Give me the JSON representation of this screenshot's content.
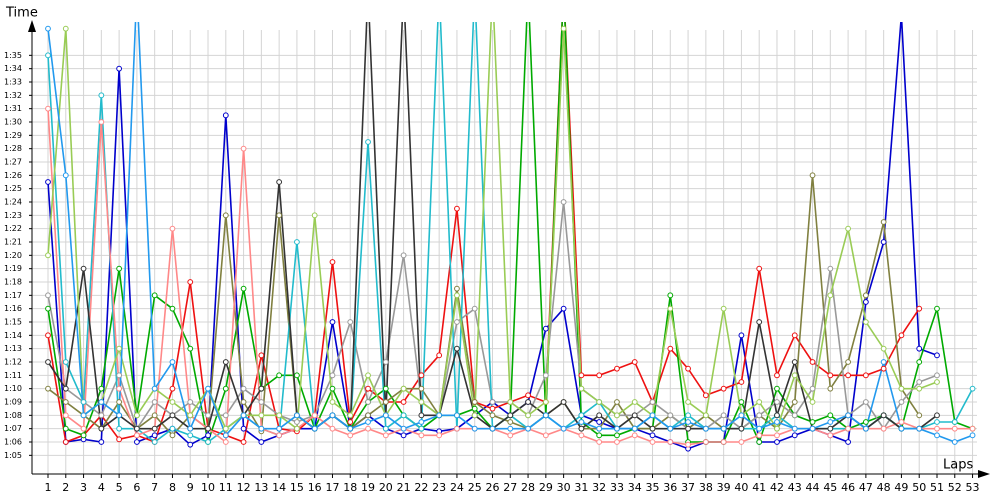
{
  "chart_data": {
    "type": "line",
    "y_label": "Time",
    "x_label": "Laps",
    "x": [
      1,
      2,
      3,
      4,
      5,
      6,
      7,
      8,
      9,
      10,
      11,
      12,
      13,
      14,
      15,
      16,
      17,
      18,
      19,
      20,
      21,
      22,
      23,
      24,
      25,
      26,
      27,
      28,
      29,
      30,
      31,
      32,
      33,
      34,
      35,
      36,
      37,
      38,
      39,
      40,
      41,
      42,
      43,
      44,
      45,
      46,
      47,
      48,
      49,
      50,
      51,
      52,
      53
    ],
    "xlim": [
      0.1,
      53.7
    ],
    "xticks": [
      1,
      2,
      3,
      4,
      5,
      6,
      7,
      8,
      9,
      10,
      11,
      12,
      13,
      14,
      15,
      16,
      17,
      18,
      19,
      20,
      21,
      22,
      23,
      24,
      25,
      26,
      27,
      28,
      29,
      30,
      31,
      32,
      33,
      34,
      35,
      36,
      37,
      38,
      39,
      40,
      41,
      42,
      43,
      44,
      45,
      46,
      47,
      48,
      49,
      50,
      51,
      52,
      53
    ],
    "ylim": [
      63.6,
      97.5
    ],
    "yticks": [
      {
        "value": 65,
        "label": "1:05"
      },
      {
        "value": 66,
        "label": "1:06"
      },
      {
        "value": 67,
        "label": "1:07"
      },
      {
        "value": 68,
        "label": "1:08"
      },
      {
        "value": 69,
        "label": "1:09"
      },
      {
        "value": 70,
        "label": "1:10"
      },
      {
        "value": 71,
        "label": "1:11"
      },
      {
        "value": 72,
        "label": "1:12"
      },
      {
        "value": 73,
        "label": "1:13"
      },
      {
        "value": 74,
        "label": "1:14"
      },
      {
        "value": 75,
        "label": "1:15"
      },
      {
        "value": 76,
        "label": "1:16"
      },
      {
        "value": 77,
        "label": "1:17"
      },
      {
        "value": 78,
        "label": "1:18"
      },
      {
        "value": 79,
        "label": "1:19"
      },
      {
        "value": 80,
        "label": "1:20"
      },
      {
        "value": 81,
        "label": "1:21"
      },
      {
        "value": 82,
        "label": "1:22"
      },
      {
        "value": 83,
        "label": "1:23"
      },
      {
        "value": 84,
        "label": "1:24"
      },
      {
        "value": 85,
        "label": "1:25"
      },
      {
        "value": 86,
        "label": "1:26"
      },
      {
        "value": 87,
        "label": "1:27"
      },
      {
        "value": 88,
        "label": "1:28"
      },
      {
        "value": 89,
        "label": "1:29"
      },
      {
        "value": 90,
        "label": "1:30"
      },
      {
        "value": 91,
        "label": "1:31"
      },
      {
        "value": 92,
        "label": "1:32"
      },
      {
        "value": 93,
        "label": "1:33"
      },
      {
        "value": 94,
        "label": "1:34"
      },
      {
        "value": 95,
        "label": "1:35"
      }
    ],
    "grid": true,
    "series": [
      {
        "color": "#0000cc",
        "values": [
          85.5,
          66,
          66.2,
          66,
          94,
          66,
          66.5,
          67,
          65.8,
          66.5,
          90.5,
          67,
          66,
          66.5,
          67,
          67,
          75,
          67,
          68,
          67,
          66.5,
          67,
          66.8,
          67,
          68,
          69,
          68,
          69,
          74.5,
          76,
          68,
          67.5,
          67,
          67,
          66.5,
          66,
          65.5,
          66,
          66,
          74,
          66,
          66,
          66.5,
          67,
          66.5,
          66,
          76.5,
          81,
          98,
          73,
          72.5,
          null,
          null
        ]
      },
      {
        "color": "#ee1111",
        "values": [
          74,
          66,
          66.5,
          68,
          66.2,
          66.5,
          66,
          70,
          78,
          67,
          66.5,
          66,
          72.5,
          67,
          66.8,
          68,
          79.5,
          67.5,
          70,
          69,
          69,
          71,
          72.5,
          83.5,
          69,
          68.5,
          69,
          69.5,
          69,
          100,
          71,
          71,
          71.5,
          72,
          69,
          73,
          71.5,
          69.5,
          70,
          70.5,
          79,
          71,
          74,
          72,
          71,
          71,
          71,
          71.5,
          74,
          76,
          null,
          null,
          null
        ]
      },
      {
        "color": "#00aa00",
        "values": [
          76,
          67,
          66.5,
          70,
          79,
          68,
          77,
          76,
          73,
          66,
          70,
          77.5,
          70,
          71,
          71,
          67,
          70,
          67,
          69,
          70,
          68,
          67,
          68,
          68,
          68.5,
          67,
          68,
          100,
          68,
          100,
          67.5,
          66.5,
          66.5,
          67,
          67,
          77,
          66,
          66,
          66,
          69,
          66,
          70,
          68,
          67.5,
          68,
          67,
          67.5,
          68,
          67,
          72,
          76,
          67.5,
          67
        ]
      },
      {
        "color": "#808040",
        "values": [
          70,
          69,
          68,
          67,
          69,
          67,
          68,
          66.5,
          68,
          67,
          83,
          69,
          66.8,
          83,
          68,
          67,
          68,
          67,
          68,
          69,
          70,
          70,
          68,
          77.5,
          69,
          68,
          67.5,
          67,
          68,
          69,
          67,
          67,
          69,
          67,
          67,
          68,
          67,
          68,
          67,
          67,
          68,
          67,
          69,
          86,
          70,
          72,
          77,
          82.5,
          70,
          68,
          null,
          null,
          null
        ]
      },
      {
        "color": "#999999",
        "values": [
          77,
          70,
          69,
          68,
          71,
          67,
          69,
          68,
          69,
          68,
          68,
          70,
          69,
          68,
          67.5,
          68,
          71,
          75,
          69,
          72,
          80,
          69,
          68,
          75,
          76,
          69,
          69,
          68,
          71,
          84,
          70,
          69,
          68,
          68,
          69,
          68,
          67,
          67,
          68,
          67,
          68,
          69,
          68,
          70,
          79,
          68,
          69,
          67,
          69,
          70.5,
          71,
          null,
          null
        ]
      },
      {
        "color": "#22bbcc",
        "values": [
          95,
          72,
          69,
          92,
          67,
          67,
          66,
          67,
          66.5,
          66,
          67,
          68,
          67,
          66.5,
          81,
          67,
          68,
          67,
          88.5,
          67,
          68,
          67,
          100,
          67,
          100,
          67,
          68,
          67,
          68,
          67,
          68,
          69,
          67,
          67,
          68,
          67,
          68,
          67,
          67,
          67,
          67,
          68,
          67,
          67,
          67,
          67,
          67,
          68,
          67,
          67,
          67.5,
          67.5,
          70
        ]
      },
      {
        "color": "#ff8888",
        "values": [
          91,
          68,
          67,
          90,
          70,
          66.5,
          67,
          82,
          68,
          67,
          66,
          88,
          67,
          66.5,
          67,
          68,
          67,
          66.5,
          67,
          66.5,
          67,
          66.5,
          66.5,
          67,
          67,
          67,
          66.5,
          67,
          66.5,
          67,
          66.5,
          66,
          66,
          66.5,
          66,
          66,
          65.8,
          66,
          66,
          66,
          66.5,
          66.5,
          67,
          67,
          66.5,
          67,
          67,
          67,
          67.5,
          67,
          67,
          67,
          67
        ]
      },
      {
        "color": "#333333",
        "values": [
          72,
          70,
          79,
          67,
          68,
          67,
          67,
          68,
          67,
          67,
          72,
          68,
          70,
          85.5,
          68,
          67,
          68,
          67,
          100,
          68,
          100,
          68,
          68,
          73,
          68,
          67,
          68,
          69,
          68,
          69,
          67,
          68,
          67,
          68,
          67,
          67,
          67,
          67,
          67,
          67,
          75,
          68,
          72,
          67,
          67,
          68,
          67,
          68,
          67,
          67,
          68,
          null,
          null
        ]
      },
      {
        "color": "#99cc55",
        "values": [
          80,
          97,
          68,
          69,
          73,
          68,
          70,
          69,
          68,
          70,
          67,
          68,
          68,
          68,
          67,
          83,
          69,
          68,
          71,
          68,
          70,
          69,
          68,
          77,
          68,
          100,
          69,
          68,
          69,
          97,
          70,
          69,
          68,
          69,
          68,
          76,
          69,
          68,
          76,
          68,
          69,
          67,
          71,
          69,
          77,
          82,
          75,
          73,
          70,
          70,
          70.5,
          null,
          null
        ]
      },
      {
        "color": "#2299ee",
        "values": [
          97,
          86,
          68,
          69,
          68,
          100,
          70,
          72,
          67,
          70,
          66.5,
          68,
          67,
          67,
          68,
          67,
          68,
          67,
          67.5,
          68,
          67,
          67.5,
          68,
          68,
          67,
          67,
          67,
          67,
          68,
          67,
          67.5,
          67,
          67,
          67,
          68,
          67,
          67.5,
          67,
          67,
          68,
          67,
          67.5,
          67,
          67,
          67.5,
          68,
          67,
          72,
          67,
          67,
          66.5,
          66,
          66.5
        ]
      }
    ]
  }
}
